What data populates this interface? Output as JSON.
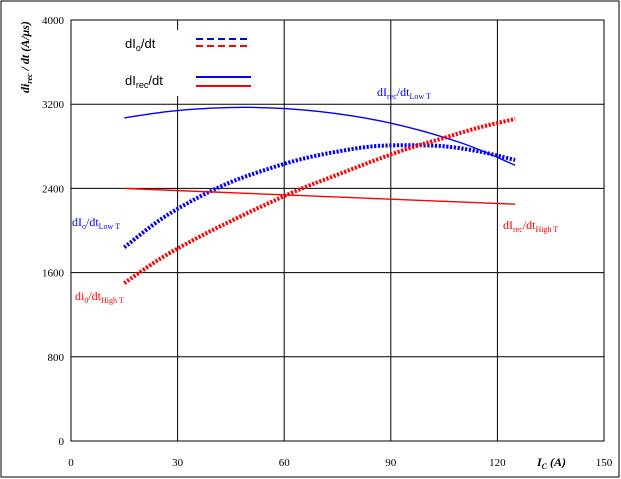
{
  "chart_data": {
    "type": "line",
    "title": "",
    "xlabel": {
      "main": "I",
      "sub": "C",
      "unit": " (A)"
    },
    "ylabel": {
      "main": "di",
      "sub": "rec",
      "rest": " / dt (A/μs)"
    },
    "xlim": [
      0,
      150
    ],
    "ylim": [
      0,
      4000
    ],
    "x_ticks": [
      0,
      30,
      60,
      90,
      120,
      150
    ],
    "y_ticks": [
      0,
      800,
      1600,
      2400,
      3200,
      4000
    ],
    "grid": true,
    "legend_position": "top-left",
    "colors": {
      "low_t": "#0000ff",
      "high_t": "#ff0000"
    },
    "legend": [
      {
        "main": "dI",
        "sub": "o",
        "rest": "/dt",
        "style": "dashed"
      },
      {
        "main": "dI",
        "sub": "rec",
        "rest": "/dt",
        "style": "solid"
      }
    ],
    "annotations": {
      "rec_low": {
        "main": "dI",
        "sub1": "rec",
        "mid": "/dt",
        "sub2": "Low T"
      },
      "o_low": {
        "main": "dI",
        "sub1": "o",
        "mid": "/dt",
        "sub2": "Low T"
      },
      "rec_high": {
        "main": "dI",
        "sub1": "rec",
        "mid": "/dt",
        "sub2": "High T"
      },
      "o_high": {
        "main": "di",
        "sub1": "0",
        "mid": "/dt",
        "sub2": "High T"
      }
    },
    "series": [
      {
        "key": "rec_low",
        "style": "solid",
        "color": "#0000ff",
        "x": [
          15,
          30,
          50,
          70,
          90,
          110,
          125
        ],
        "y": [
          3070,
          3140,
          3170,
          3130,
          3020,
          2830,
          2620
        ]
      },
      {
        "key": "o_low",
        "style": "dotted",
        "color": "#0000ff",
        "x": [
          15,
          25,
          35,
          45,
          55,
          65,
          75,
          85,
          95,
          105,
          115,
          125
        ],
        "y": [
          1840,
          2100,
          2300,
          2460,
          2580,
          2680,
          2750,
          2800,
          2810,
          2800,
          2750,
          2670
        ]
      },
      {
        "key": "rec_high",
        "style": "solid",
        "color": "#ff0000",
        "x": [
          15,
          125
        ],
        "y": [
          2400,
          2250
        ]
      },
      {
        "key": "o_high",
        "style": "dotted",
        "color": "#ff0000",
        "x": [
          15,
          25,
          35,
          45,
          55,
          65,
          75,
          85,
          95,
          105,
          115,
          125
        ],
        "y": [
          1500,
          1730,
          1920,
          2090,
          2250,
          2400,
          2530,
          2660,
          2780,
          2880,
          2980,
          3060
        ]
      }
    ]
  }
}
